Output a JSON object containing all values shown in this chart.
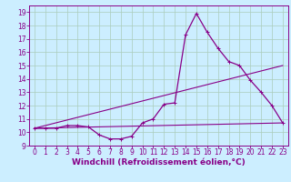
{
  "xlabel": "Windchill (Refroidissement éolien,°C)",
  "bg_color": "#cceeff",
  "line_color": "#880088",
  "grid_color": "#aaccbb",
  "xlim": [
    -0.5,
    23.5
  ],
  "ylim": [
    9,
    19.5
  ],
  "xticks": [
    0,
    1,
    2,
    3,
    4,
    5,
    6,
    7,
    8,
    9,
    10,
    11,
    12,
    13,
    14,
    15,
    16,
    17,
    18,
    19,
    20,
    21,
    22,
    23
  ],
  "yticks": [
    9,
    10,
    11,
    12,
    13,
    14,
    15,
    16,
    17,
    18,
    19
  ],
  "curve1_x": [
    0,
    1,
    2,
    3,
    4,
    5,
    6,
    7,
    8,
    9,
    10,
    11,
    12,
    13,
    14,
    15,
    16,
    17,
    18,
    19,
    20,
    21,
    22,
    23
  ],
  "curve1_y": [
    10.3,
    10.3,
    10.3,
    10.5,
    10.5,
    10.4,
    9.8,
    9.5,
    9.5,
    9.7,
    10.7,
    11.0,
    12.1,
    12.2,
    17.3,
    18.9,
    17.5,
    16.3,
    15.3,
    15.0,
    13.9,
    13.0,
    12.0,
    10.7
  ],
  "curve2_x": [
    0,
    23
  ],
  "curve2_y": [
    10.3,
    10.7
  ],
  "curve3_x": [
    0,
    23
  ],
  "curve3_y": [
    10.3,
    15.0
  ],
  "xlabel_fontsize": 6.5,
  "tick_fontsize": 5.5
}
